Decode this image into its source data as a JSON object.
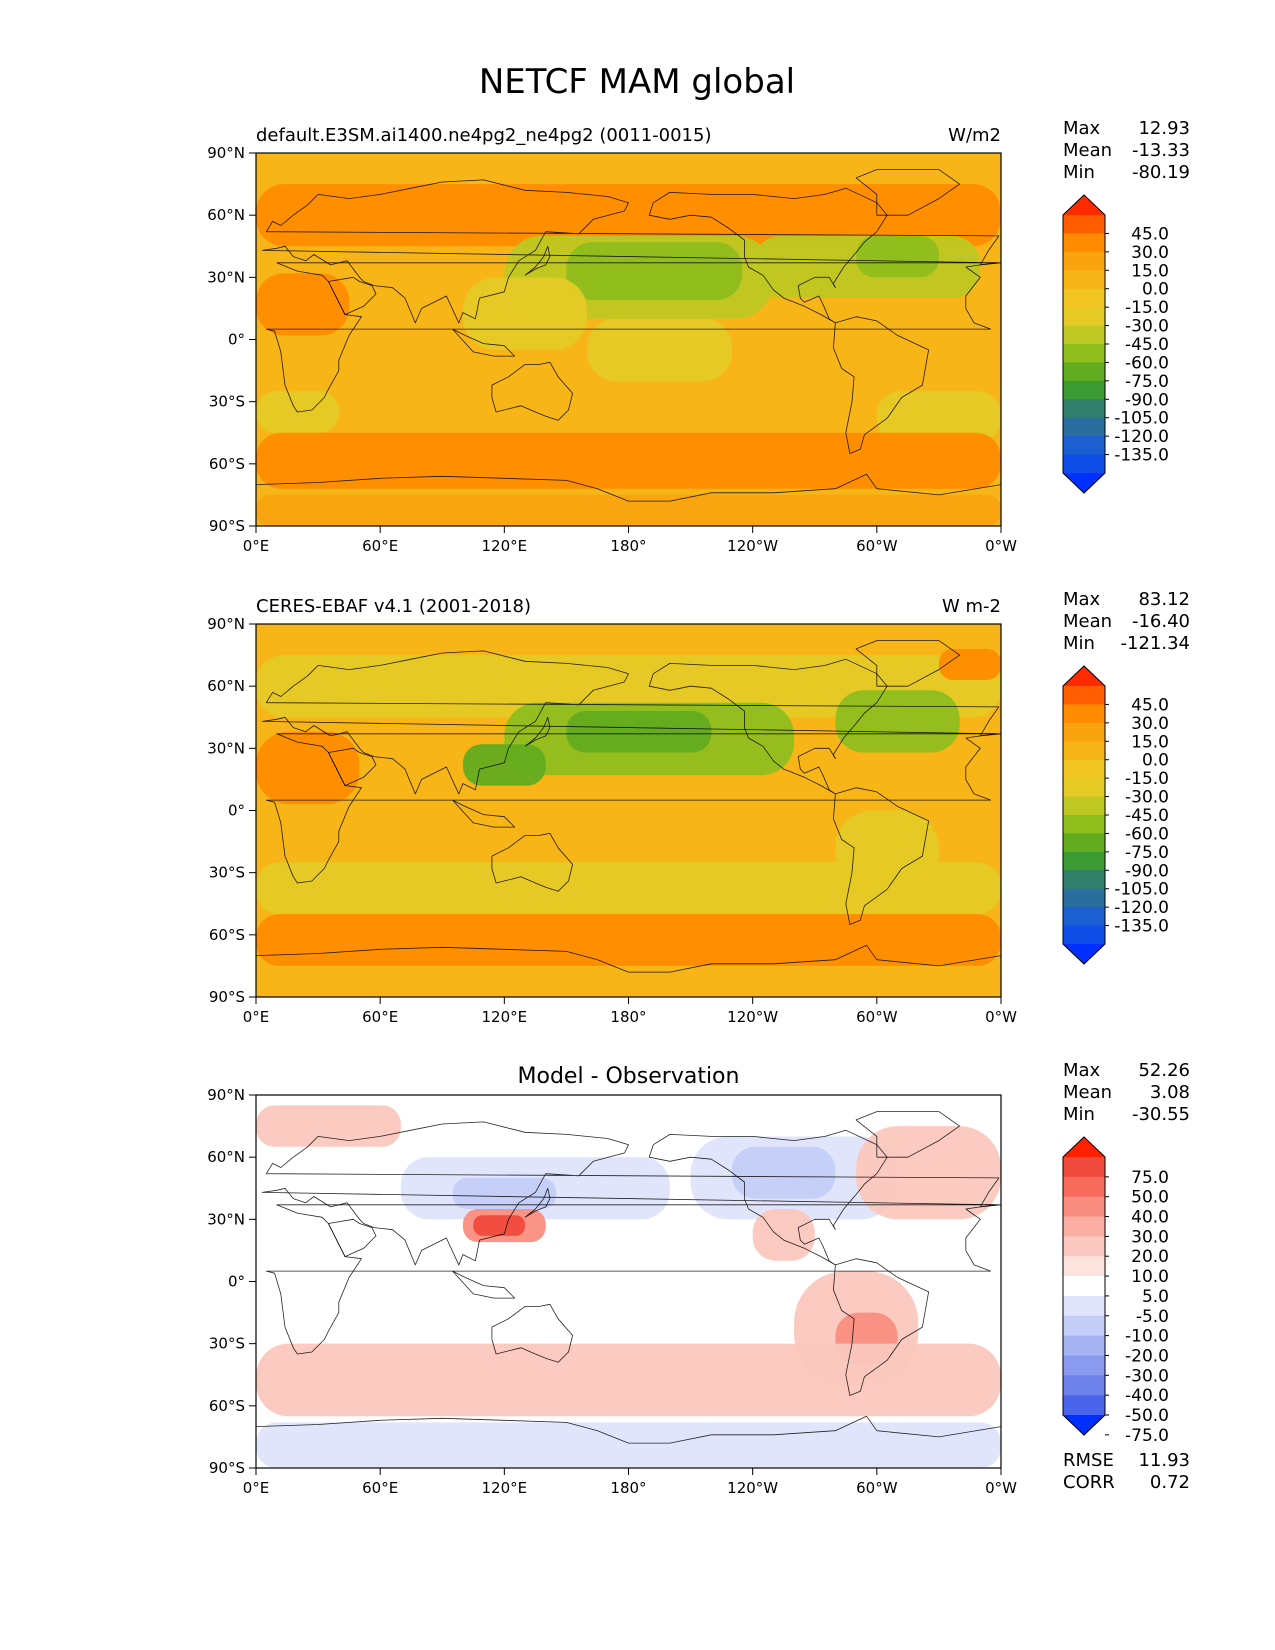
{
  "title": "NETCF MAM global",
  "panels": [
    {
      "id": "model",
      "left_title": "default.E3SM.ai1400.ne4pg2_ne4pg2 (0011-0015)",
      "center_title": "",
      "right_title": "W/m2",
      "stats": [
        {
          "label": "Max",
          "value": "12.93"
        },
        {
          "label": "Mean",
          "value": "-13.33"
        },
        {
          "label": "Min",
          "value": "-80.19"
        }
      ],
      "extra_stats": [],
      "colorbar": {
        "levels": [
          "45.0",
          "30.0",
          "15.0",
          "0.0",
          "-15.0",
          "-30.0",
          "-45.0",
          "-60.0",
          "-75.0",
          "-90.0",
          "-105.0",
          "-120.0",
          "-135.0"
        ],
        "colors": [
          "#ff2b00",
          "#ff5d00",
          "#ff8c00",
          "#f9a40f",
          "#f7b518",
          "#f0c522",
          "#e5ca25",
          "#bfc722",
          "#8fbe1d",
          "#62ac1f",
          "#3b9a31",
          "#2f7f6b",
          "#2a6e9e",
          "#1c5fd0",
          "#0e4de7",
          "#0030ff"
        ]
      },
      "map_palette": {
        "dominant": "#f7b518",
        "warm": "#f9a40f",
        "hot": "#ff8c00",
        "cool": "#e5ca25",
        "cooler": "#bfc722",
        "green": "#8fbe1d",
        "deep_green": "#62ac1f"
      }
    },
    {
      "id": "obs",
      "left_title": "CERES-EBAF v4.1 (2001-2018)",
      "center_title": "",
      "right_title": "W m-2",
      "stats": [
        {
          "label": "Max",
          "value": "83.12"
        },
        {
          "label": "Mean",
          "value": "-16.40"
        },
        {
          "label": "Min",
          "value": "-121.34"
        }
      ],
      "extra_stats": [],
      "colorbar": {
        "levels": [
          "45.0",
          "30.0",
          "15.0",
          "0.0",
          "-15.0",
          "-30.0",
          "-45.0",
          "-60.0",
          "-75.0",
          "-90.0",
          "-105.0",
          "-120.0",
          "-135.0"
        ],
        "colors": [
          "#ff2b00",
          "#ff5d00",
          "#ff8c00",
          "#f9a40f",
          "#f7b518",
          "#f0c522",
          "#e5ca25",
          "#bfc722",
          "#8fbe1d",
          "#62ac1f",
          "#3b9a31",
          "#2f7f6b",
          "#2a6e9e",
          "#1c5fd0",
          "#0e4de7",
          "#0030ff"
        ]
      },
      "map_palette": {
        "dominant": "#f7b518",
        "warm": "#f9a40f",
        "hot": "#ff8c00",
        "cool": "#e5ca25",
        "cooler": "#bfc722",
        "green": "#8fbe1d",
        "deep_green": "#62ac1f"
      }
    },
    {
      "id": "diff",
      "left_title": "",
      "center_title": "Model - Observation",
      "right_title": "",
      "stats": [
        {
          "label": "Max",
          "value": "52.26"
        },
        {
          "label": "Mean",
          "value": "3.08"
        },
        {
          "label": "Min",
          "value": "-30.55"
        }
      ],
      "extra_stats": [
        {
          "label": "RMSE",
          "value": "11.93"
        },
        {
          "label": "CORR",
          "value": "0.72"
        }
      ],
      "colorbar": {
        "levels": [
          "75.0",
          "50.0",
          "40.0",
          "30.0",
          "20.0",
          "10.0",
          "5.0",
          "-5.0",
          "-10.0",
          "-20.0",
          "-30.0",
          "-40.0",
          "-50.0",
          "-75.0"
        ],
        "colors": [
          "#ff2200",
          "#f04a3c",
          "#f76b5d",
          "#f98e80",
          "#fbaea3",
          "#fcc9c1",
          "#fde3de",
          "#ffffff",
          "#dfe4fb",
          "#c3cdf7",
          "#a7b4f3",
          "#8a9bef",
          "#6d82eb",
          "#4a64ec",
          "#0030ff"
        ]
      },
      "map_palette": {
        "dominant": "#ffffff",
        "warm": "#fbc7bd",
        "hot": "#f98e80",
        "cool": "#dfe4fb",
        "cooler": "#c3cdf7",
        "green": "#a7b4f3",
        "deep_green": "#f04a3c"
      }
    }
  ],
  "axes": {
    "lat_ticks": [
      "90°N",
      "60°N",
      "30°N",
      "0°",
      "30°S",
      "60°S",
      "90°S"
    ],
    "lon_ticks": [
      "0°E",
      "60°E",
      "120°E",
      "180°",
      "120°W",
      "60°W",
      "0°W"
    ]
  }
}
